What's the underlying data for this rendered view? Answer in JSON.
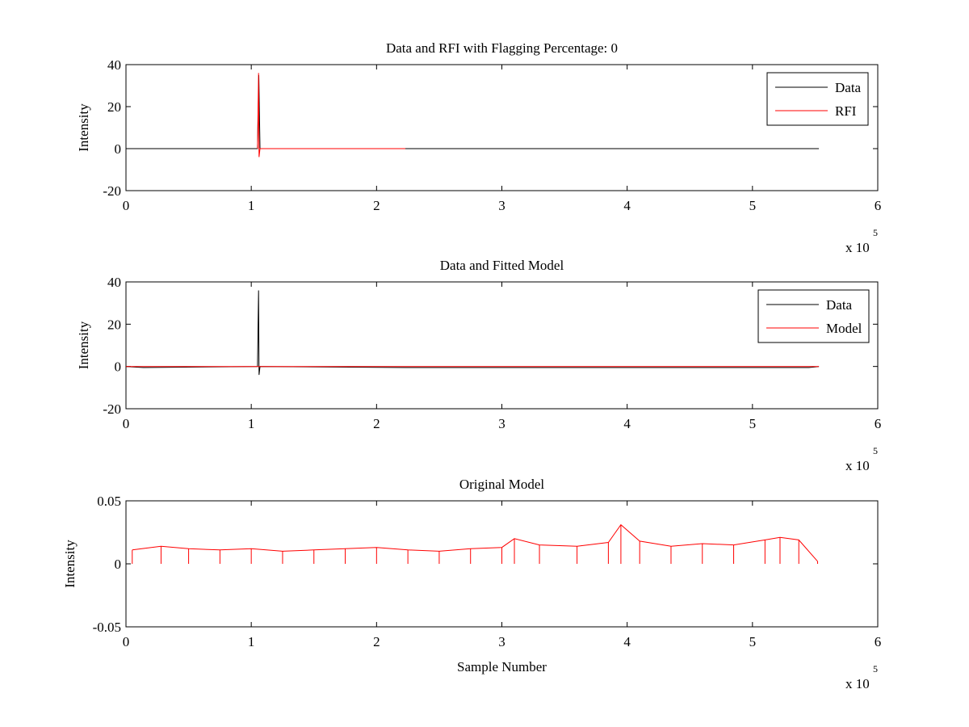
{
  "chart_data": [
    {
      "type": "line",
      "title": "Data and RFI with Flagging Percentage: 0",
      "xlabel": "",
      "ylabel": "Intensity",
      "xlim": [
        0,
        6
      ],
      "ylim": [
        -20,
        40
      ],
      "x_ticks": [
        "0",
        "1",
        "2",
        "3",
        "4",
        "5",
        "6"
      ],
      "y_ticks": [
        "-20",
        "0",
        "20",
        "40"
      ],
      "x_multiplier": {
        "base": "x 10",
        "exponent": "5"
      },
      "legend_position": "top-right",
      "grid": false,
      "series": [
        {
          "name": "Data",
          "color": "#000000",
          "x": [
            0,
            0.1,
            0.2,
            1.05,
            1.06,
            1.07,
            1.5,
            2.0,
            2.5,
            3.0,
            3.5,
            4.0,
            4.5,
            5.0,
            5.5,
            5.53
          ],
          "y": [
            0,
            0,
            0,
            0,
            35,
            0,
            0,
            0,
            0,
            0,
            0,
            0,
            0,
            0,
            0,
            0
          ]
        },
        {
          "name": "RFI",
          "color": "#ff0000",
          "x": [
            1.05,
            1.058,
            1.062,
            1.07,
            2.23
          ],
          "y": [
            0,
            36,
            -4,
            0,
            0
          ]
        }
      ]
    },
    {
      "type": "line",
      "title": "Data and Fitted Model",
      "xlabel": "",
      "ylabel": "Intensity",
      "xlim": [
        0,
        6
      ],
      "ylim": [
        -20,
        40
      ],
      "x_ticks": [
        "0",
        "1",
        "2",
        "3",
        "4",
        "5",
        "6"
      ],
      "y_ticks": [
        "-20",
        "0",
        "20",
        "40"
      ],
      "x_multiplier": {
        "base": "x 10",
        "exponent": "5"
      },
      "legend_position": "top-right",
      "grid": false,
      "series": [
        {
          "name": "Data",
          "color": "#000000",
          "x": [
            0,
            0.14,
            1.05,
            1.058,
            1.062,
            1.07,
            2.23,
            2.8,
            5.45,
            5.53
          ],
          "y": [
            0,
            -0.5,
            0,
            36,
            -4,
            0,
            -0.5,
            -0.5,
            -0.5,
            0
          ]
        },
        {
          "name": "Model",
          "color": "#ff0000",
          "x": [
            0,
            5.53
          ],
          "y": [
            0,
            0
          ]
        }
      ]
    },
    {
      "type": "line",
      "title": "Original Model",
      "xlabel": "Sample Number",
      "ylabel": "Intensity",
      "xlim": [
        0,
        6
      ],
      "ylim": [
        -0.05,
        0.05
      ],
      "x_ticks": [
        "0",
        "1",
        "2",
        "3",
        "4",
        "5",
        "6"
      ],
      "y_ticks": [
        "-0.05",
        "0",
        "0.05"
      ],
      "x_multiplier": {
        "base": "x 10",
        "exponent": "5"
      },
      "legend_position": "none",
      "grid": false,
      "series": [
        {
          "color": "#ff0000",
          "x": [
            0.05,
            0.28,
            0.5,
            0.75,
            1.0,
            1.25,
            1.5,
            1.75,
            2.0,
            2.25,
            2.5,
            2.75,
            3.0,
            3.1,
            3.3,
            3.6,
            3.85,
            3.95,
            4.1,
            4.35,
            4.6,
            4.85,
            5.1,
            5.22,
            5.37,
            5.52
          ],
          "y": [
            0.011,
            0.014,
            0.012,
            0.011,
            0.012,
            0.01,
            0.011,
            0.012,
            0.013,
            0.011,
            0.01,
            0.012,
            0.013,
            0.02,
            0.015,
            0.014,
            0.017,
            0.031,
            0.018,
            0.014,
            0.016,
            0.015,
            0.019,
            0.021,
            0.019,
            0.002
          ]
        }
      ]
    }
  ]
}
